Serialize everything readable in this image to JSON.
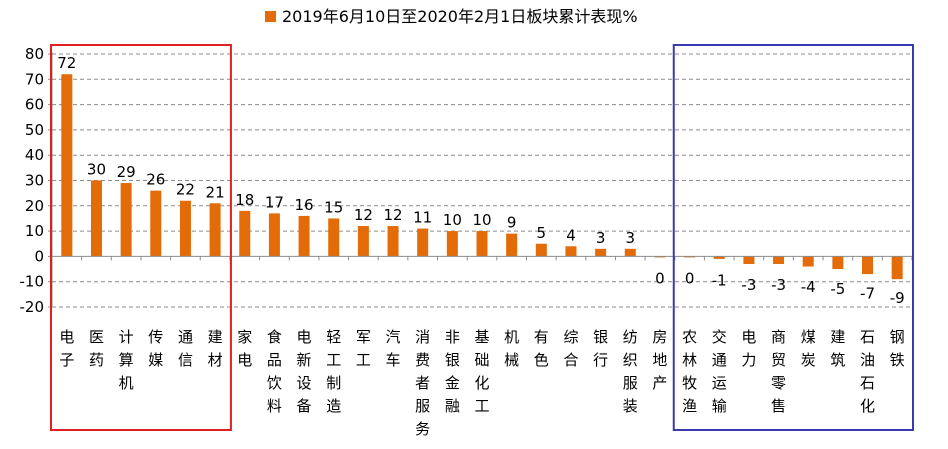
{
  "chart_data": {
    "type": "bar",
    "title": "",
    "xlabel": "",
    "ylabel": "",
    "ylim": [
      -20,
      80
    ],
    "y_ticks": [
      -20,
      -10,
      0,
      10,
      20,
      30,
      40,
      50,
      60,
      70,
      80
    ],
    "grid": true,
    "legend_position": "top-center",
    "series": [
      {
        "name": "2019年6月10日至2020年2月1日板块累计表现%",
        "color": "#E36C09",
        "values": [
          72,
          30,
          29,
          26,
          22,
          21,
          18,
          17,
          16,
          15,
          12,
          12,
          11,
          10,
          10,
          9,
          5,
          4,
          3,
          3,
          0,
          0,
          -1,
          -3,
          -3,
          -4,
          -5,
          -7,
          -9
        ],
        "data_labels": [
          "72",
          "30",
          "29",
          "26",
          "22",
          "21",
          "18",
          "17",
          "16",
          "15",
          "12",
          "12",
          "11",
          "10",
          "10",
          "9",
          "5",
          "4",
          "3",
          "3",
          "0",
          "0",
          "-1",
          "-3",
          "-3",
          "-4",
          "-5",
          "-7",
          "-9"
        ]
      }
    ],
    "categories": [
      "电子",
      "医药",
      "计算机",
      "传媒",
      "通信",
      "建材",
      "家电",
      "食品饮料",
      "电新设备",
      "轻工制造",
      "军工",
      "汽车",
      "消费者服务",
      "非银金融",
      "基础化工",
      "机械",
      "有色",
      "综合",
      "银行",
      "纺织服装",
      "房地产",
      "农林牧渔",
      "交通运输",
      "电力",
      "商贸零售",
      "煤炭",
      "建筑",
      "石油石化",
      "钢铁"
    ],
    "highlight_boxes": [
      {
        "from_category": 0,
        "to_category": 5,
        "color": "#E02020"
      },
      {
        "from_category": 21,
        "to_category": 28,
        "color": "#3A3AB0"
      }
    ]
  }
}
